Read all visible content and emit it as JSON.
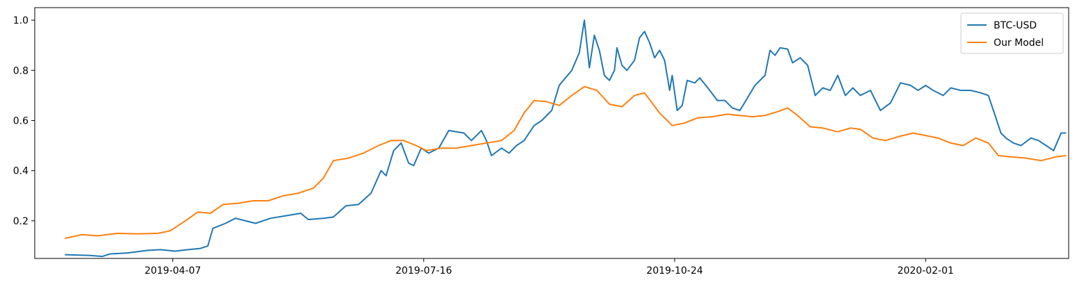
{
  "chart_data": {
    "type": "line",
    "title": "",
    "xlabel": "",
    "ylabel": "",
    "grid": false,
    "legend_placement": "top-right",
    "xlim": [
      "2019-02-11",
      "2020-03-29"
    ],
    "ylim": [
      0.05,
      1.05
    ],
    "x_ticks": [
      {
        "date": "2019-04-07",
        "label": "2019-04-07"
      },
      {
        "date": "2019-07-16",
        "label": "2019-07-16"
      },
      {
        "date": "2019-10-24",
        "label": "2019-10-24"
      },
      {
        "date": "2020-02-01",
        "label": "2020-02-01"
      }
    ],
    "y_ticks": [
      {
        "value": 0.2,
        "label": "0.2"
      },
      {
        "value": 0.4,
        "label": "0.4"
      },
      {
        "value": 0.6,
        "label": "0.6"
      },
      {
        "value": 0.8,
        "label": "0.8"
      },
      {
        "value": 1.0,
        "label": "1.0"
      }
    ],
    "series": [
      {
        "name": "BTC-USD",
        "color": "#1f77b4",
        "points": [
          [
            "2019-02-23",
            0.065
          ],
          [
            "2019-03-05",
            0.062
          ],
          [
            "2019-03-10",
            0.058
          ],
          [
            "2019-03-13",
            0.068
          ],
          [
            "2019-03-20",
            0.072
          ],
          [
            "2019-03-28",
            0.082
          ],
          [
            "2019-04-02",
            0.085
          ],
          [
            "2019-04-08",
            0.079
          ],
          [
            "2019-04-13",
            0.085
          ],
          [
            "2019-04-18",
            0.09
          ],
          [
            "2019-04-21",
            0.1
          ],
          [
            "2019-04-23",
            0.17
          ],
          [
            "2019-04-28",
            0.19
          ],
          [
            "2019-05-02",
            0.21
          ],
          [
            "2019-05-06",
            0.2
          ],
          [
            "2019-05-10",
            0.19
          ],
          [
            "2019-05-16",
            0.21
          ],
          [
            "2019-05-22",
            0.22
          ],
          [
            "2019-05-28",
            0.23
          ],
          [
            "2019-05-31",
            0.205
          ],
          [
            "2019-06-06",
            0.21
          ],
          [
            "2019-06-10",
            0.215
          ],
          [
            "2019-06-15",
            0.26
          ],
          [
            "2019-06-20",
            0.265
          ],
          [
            "2019-06-25",
            0.31
          ],
          [
            "2019-06-29",
            0.4
          ],
          [
            "2019-07-01",
            0.38
          ],
          [
            "2019-07-04",
            0.48
          ],
          [
            "2019-07-07",
            0.51
          ],
          [
            "2019-07-10",
            0.43
          ],
          [
            "2019-07-12",
            0.42
          ],
          [
            "2019-07-15",
            0.49
          ],
          [
            "2019-07-18",
            0.47
          ],
          [
            "2019-07-22",
            0.49
          ],
          [
            "2019-07-26",
            0.56
          ],
          [
            "2019-08-01",
            0.55
          ],
          [
            "2019-08-04",
            0.52
          ],
          [
            "2019-08-08",
            0.56
          ],
          [
            "2019-08-10",
            0.52
          ],
          [
            "2019-08-12",
            0.46
          ],
          [
            "2019-08-16",
            0.49
          ],
          [
            "2019-08-19",
            0.47
          ],
          [
            "2019-08-22",
            0.5
          ],
          [
            "2019-08-25",
            0.52
          ],
          [
            "2019-08-29",
            0.58
          ],
          [
            "2019-09-01",
            0.6
          ],
          [
            "2019-09-05",
            0.64
          ],
          [
            "2019-09-08",
            0.74
          ],
          [
            "2019-09-13",
            0.8
          ],
          [
            "2019-09-16",
            0.87
          ],
          [
            "2019-09-18",
            1.0
          ],
          [
            "2019-09-20",
            0.81
          ],
          [
            "2019-09-22",
            0.94
          ],
          [
            "2019-09-24",
            0.88
          ],
          [
            "2019-09-26",
            0.78
          ],
          [
            "2019-09-28",
            0.76
          ],
          [
            "2019-09-30",
            0.8
          ],
          [
            "2019-10-01",
            0.89
          ],
          [
            "2019-10-03",
            0.82
          ],
          [
            "2019-10-05",
            0.8
          ],
          [
            "2019-10-08",
            0.84
          ],
          [
            "2019-10-10",
            0.93
          ],
          [
            "2019-10-12",
            0.955
          ],
          [
            "2019-10-14",
            0.91
          ],
          [
            "2019-10-16",
            0.85
          ],
          [
            "2019-10-18",
            0.88
          ],
          [
            "2019-10-20",
            0.84
          ],
          [
            "2019-10-22",
            0.72
          ],
          [
            "2019-10-23",
            0.78
          ],
          [
            "2019-10-25",
            0.64
          ],
          [
            "2019-10-27",
            0.66
          ],
          [
            "2019-10-29",
            0.76
          ],
          [
            "2019-11-01",
            0.75
          ],
          [
            "2019-11-03",
            0.77
          ],
          [
            "2019-11-07",
            0.72
          ],
          [
            "2019-11-10",
            0.68
          ],
          [
            "2019-11-13",
            0.68
          ],
          [
            "2019-11-16",
            0.65
          ],
          [
            "2019-11-19",
            0.64
          ],
          [
            "2019-11-22",
            0.69
          ],
          [
            "2019-11-25",
            0.74
          ],
          [
            "2019-11-29",
            0.78
          ],
          [
            "2019-12-01",
            0.88
          ],
          [
            "2019-12-03",
            0.86
          ],
          [
            "2019-12-05",
            0.89
          ],
          [
            "2019-12-08",
            0.885
          ],
          [
            "2019-12-10",
            0.83
          ],
          [
            "2019-12-13",
            0.85
          ],
          [
            "2019-12-16",
            0.82
          ],
          [
            "2019-12-19",
            0.7
          ],
          [
            "2019-12-22",
            0.73
          ],
          [
            "2019-12-25",
            0.72
          ],
          [
            "2019-12-28",
            0.78
          ],
          [
            "2019-12-31",
            0.7
          ],
          [
            "2020-01-03",
            0.73
          ],
          [
            "2020-01-06",
            0.7
          ],
          [
            "2020-01-10",
            0.72
          ],
          [
            "2020-01-14",
            0.64
          ],
          [
            "2020-01-18",
            0.67
          ],
          [
            "2020-01-22",
            0.75
          ],
          [
            "2020-01-26",
            0.74
          ],
          [
            "2020-01-29",
            0.72
          ],
          [
            "2020-02-01",
            0.74
          ],
          [
            "2020-02-04",
            0.72
          ],
          [
            "2020-02-08",
            0.7
          ],
          [
            "2020-02-11",
            0.73
          ],
          [
            "2020-02-15",
            0.72
          ],
          [
            "2020-02-19",
            0.72
          ],
          [
            "2020-02-23",
            0.71
          ],
          [
            "2020-02-26",
            0.7
          ],
          [
            "2020-02-28",
            0.64
          ],
          [
            "2020-03-02",
            0.55
          ],
          [
            "2020-03-04",
            0.53
          ],
          [
            "2020-03-07",
            0.51
          ],
          [
            "2020-03-10",
            0.5
          ],
          [
            "2020-03-14",
            0.53
          ],
          [
            "2020-03-17",
            0.52
          ],
          [
            "2020-03-20",
            0.5
          ],
          [
            "2020-03-23",
            0.48
          ],
          [
            "2020-03-26",
            0.55
          ],
          [
            "2020-03-28",
            0.55
          ]
        ]
      },
      {
        "name": "Our Model",
        "color": "#ff7f0e",
        "points": [
          [
            "2019-02-23",
            0.13
          ],
          [
            "2019-03-02",
            0.145
          ],
          [
            "2019-03-08",
            0.14
          ],
          [
            "2019-03-16",
            0.15
          ],
          [
            "2019-03-24",
            0.148
          ],
          [
            "2019-04-01",
            0.15
          ],
          [
            "2019-04-06",
            0.16
          ],
          [
            "2019-04-12",
            0.2
          ],
          [
            "2019-04-17",
            0.235
          ],
          [
            "2019-04-22",
            0.23
          ],
          [
            "2019-04-27",
            0.265
          ],
          [
            "2019-05-03",
            0.27
          ],
          [
            "2019-05-09",
            0.28
          ],
          [
            "2019-05-15",
            0.28
          ],
          [
            "2019-05-21",
            0.3
          ],
          [
            "2019-05-27",
            0.31
          ],
          [
            "2019-06-02",
            0.33
          ],
          [
            "2019-06-06",
            0.37
          ],
          [
            "2019-06-10",
            0.44
          ],
          [
            "2019-06-16",
            0.45
          ],
          [
            "2019-06-22",
            0.47
          ],
          [
            "2019-06-28",
            0.5
          ],
          [
            "2019-07-03",
            0.52
          ],
          [
            "2019-07-08",
            0.52
          ],
          [
            "2019-07-13",
            0.5
          ],
          [
            "2019-07-17",
            0.48
          ],
          [
            "2019-07-23",
            0.49
          ],
          [
            "2019-07-29",
            0.49
          ],
          [
            "2019-08-04",
            0.5
          ],
          [
            "2019-08-10",
            0.51
          ],
          [
            "2019-08-16",
            0.52
          ],
          [
            "2019-08-21",
            0.56
          ],
          [
            "2019-08-25",
            0.63
          ],
          [
            "2019-08-29",
            0.68
          ],
          [
            "2019-09-03",
            0.675
          ],
          [
            "2019-09-08",
            0.66
          ],
          [
            "2019-09-13",
            0.7
          ],
          [
            "2019-09-18",
            0.735
          ],
          [
            "2019-09-23",
            0.72
          ],
          [
            "2019-09-28",
            0.665
          ],
          [
            "2019-10-03",
            0.655
          ],
          [
            "2019-10-08",
            0.7
          ],
          [
            "2019-10-12",
            0.71
          ],
          [
            "2019-10-18",
            0.63
          ],
          [
            "2019-10-23",
            0.58
          ],
          [
            "2019-10-28",
            0.59
          ],
          [
            "2019-11-02",
            0.61
          ],
          [
            "2019-11-08",
            0.615
          ],
          [
            "2019-11-14",
            0.625
          ],
          [
            "2019-11-19",
            0.62
          ],
          [
            "2019-11-24",
            0.615
          ],
          [
            "2019-11-29",
            0.62
          ],
          [
            "2019-12-04",
            0.635
          ],
          [
            "2019-12-08",
            0.65
          ],
          [
            "2019-12-12",
            0.62
          ],
          [
            "2019-12-17",
            0.575
          ],
          [
            "2019-12-22",
            0.57
          ],
          [
            "2019-12-28",
            0.555
          ],
          [
            "2020-01-02",
            0.57
          ],
          [
            "2020-01-06",
            0.565
          ],
          [
            "2020-01-11",
            0.53
          ],
          [
            "2020-01-16",
            0.52
          ],
          [
            "2020-01-21",
            0.535
          ],
          [
            "2020-01-27",
            0.55
          ],
          [
            "2020-02-01",
            0.54
          ],
          [
            "2020-02-06",
            0.53
          ],
          [
            "2020-02-11",
            0.51
          ],
          [
            "2020-02-16",
            0.5
          ],
          [
            "2020-02-21",
            0.53
          ],
          [
            "2020-02-26",
            0.51
          ],
          [
            "2020-03-01",
            0.46
          ],
          [
            "2020-03-06",
            0.455
          ],
          [
            "2020-03-12",
            0.45
          ],
          [
            "2020-03-18",
            0.44
          ],
          [
            "2020-03-24",
            0.455
          ],
          [
            "2020-03-28",
            0.46
          ]
        ]
      }
    ]
  }
}
